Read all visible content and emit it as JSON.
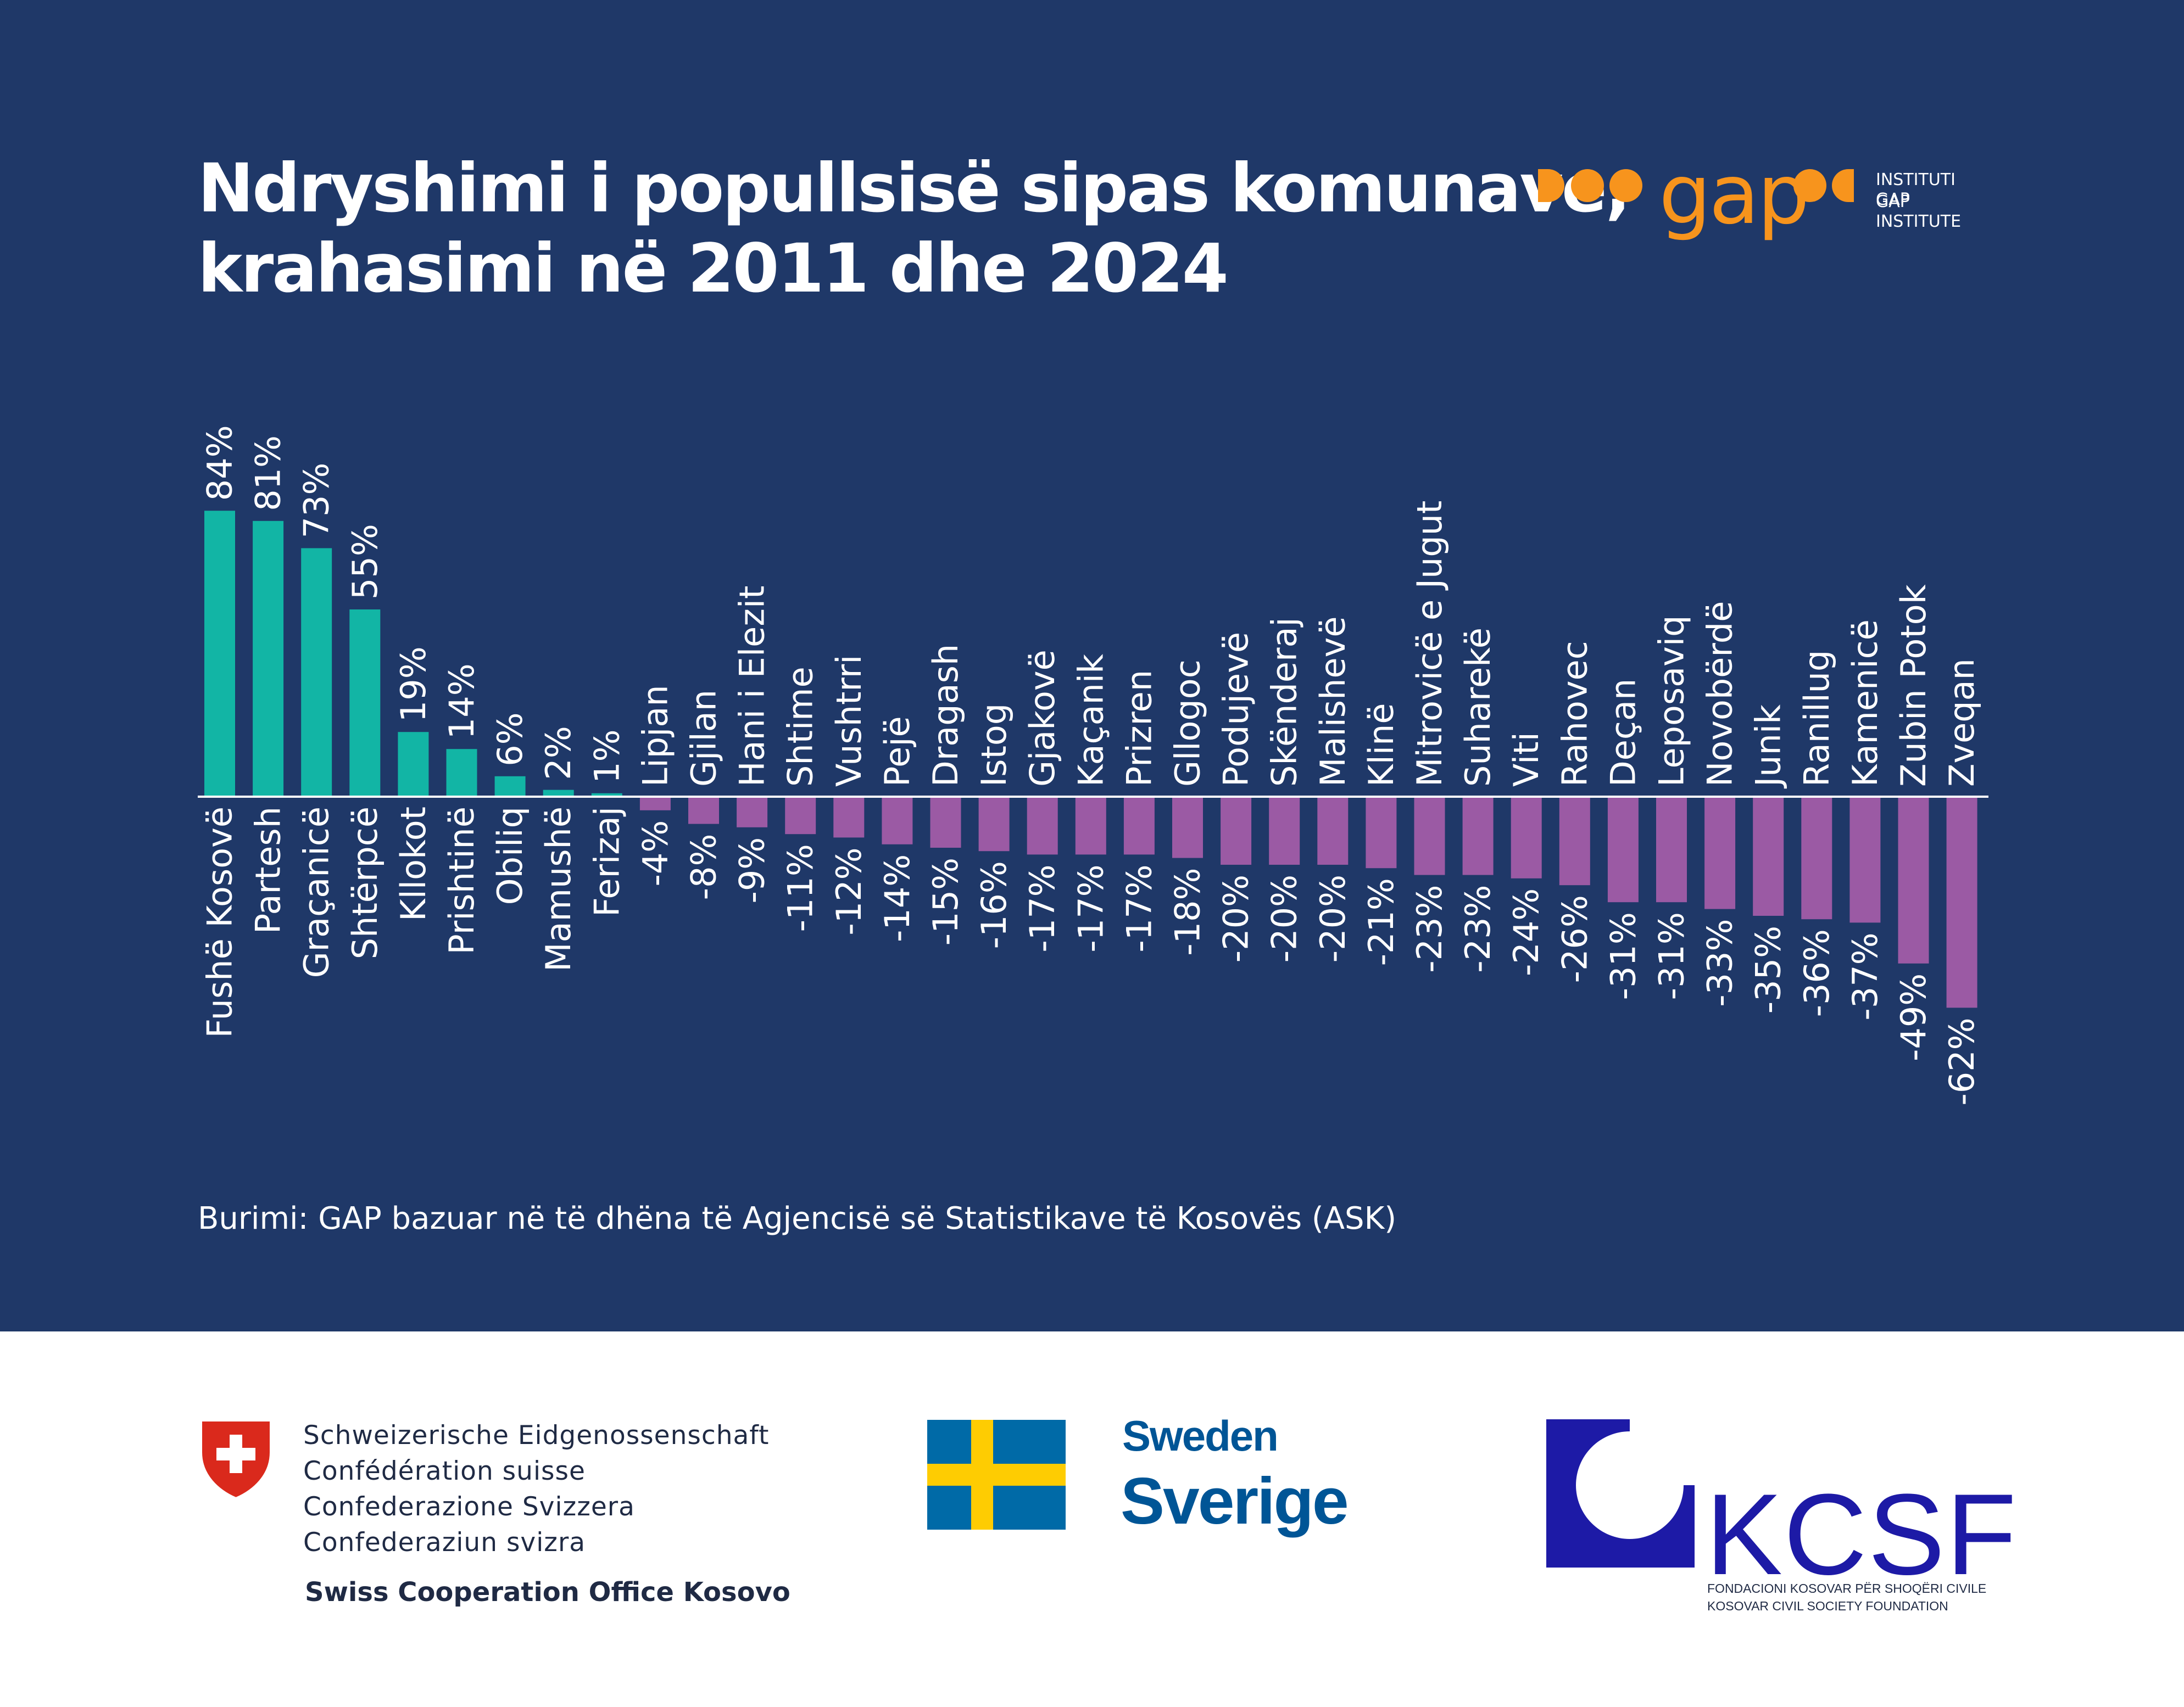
{
  "header": {
    "title_line1": "Ndryshimi i popullsisë sipas komunave,",
    "title_line2": "krahasimi në 2011 dhe 2024",
    "brand_word": "gap",
    "brand_tag_line1": "INSTITUTI GAP",
    "brand_tag_line2": "GAP INSTITUTE",
    "brand_color": "#f7941d"
  },
  "colors": {
    "background": "#1f3868",
    "positive": "#12b5a5",
    "negative": "#9b5aa4",
    "text": "#ffffff"
  },
  "chart_data": {
    "type": "bar",
    "unit": "%",
    "categories": [
      "Fushë Kosovë",
      "Partesh",
      "Graçanicë",
      "Shtërpcë",
      "Kllokot",
      "Prishtinë",
      "Obiliq",
      "Mamushë",
      "Ferizaj",
      "Lipjan",
      "Gjilan",
      "Hani i Elezit",
      "Shtime",
      "Vushtrri",
      "Pejë",
      "Dragash",
      "Istog",
      "Gjakovë",
      "Kaçanik",
      "Prizren",
      "Gllogoc",
      "Podujevë",
      "Skënderaj",
      "Malishevë",
      "Klinë",
      "Mitrovicë e Jugut",
      "Suharekë",
      "Viti",
      "Rahovec",
      "Deçan",
      "Leposaviq",
      "Novobërdë",
      "Junik",
      "Ranillug",
      "Kamenicë",
      "Zubin Potok",
      "Zveqan"
    ],
    "values": [
      84,
      81,
      73,
      55,
      19,
      14,
      6,
      2,
      1,
      -4,
      -8,
      -9,
      -11,
      -12,
      -14,
      -15,
      -16,
      -17,
      -17,
      -17,
      -18,
      -20,
      -20,
      -20,
      -21,
      -23,
      -23,
      -24,
      -26,
      -31,
      -31,
      -33,
      -35,
      -36,
      -37,
      -49,
      -62
    ],
    "value_labels": [
      "84%",
      "81%",
      "73%",
      "55%",
      "19%",
      "14%",
      "6%",
      "2%",
      "1%",
      "-4%",
      "-8%",
      "-9%",
      "-11%",
      "-12%",
      "-14%",
      "-15%",
      "-16%",
      "-17%",
      "-17%",
      "-17%",
      "-18%",
      "-20%",
      "-20%",
      "-20%",
      "-21%",
      "-23%",
      "-23%",
      "-24%",
      "-26%",
      "-31%",
      "-31%",
      "-33%",
      "-35%",
      "-36%",
      "-37%",
      "-49%",
      "-62%"
    ],
    "ylim": [
      -62,
      84
    ],
    "grid": false,
    "legend": "none"
  },
  "source": "Burimi: GAP bazuar në të dhëna të Agjencisë së Statistikave të Kosovës (ASK)",
  "sponsors": {
    "swiss_lines": [
      "Schweizerische Eidgenossenschaft",
      "Confédération suisse",
      "Confederazione Svizzera",
      "Confederaziun svizra"
    ],
    "swiss_office": "Swiss Cooperation Office Kosovo",
    "sweden_small": "Sweden",
    "sweden_big": "Sverige",
    "kcsf_name": "KCSF",
    "kcsf_sub1": "FONDACIONI KOSOVAR PËR SHOQËRI CIVILE",
    "kcsf_sub2": "KOSOVAR CIVIL SOCIETY FOUNDATION",
    "sweden_blue": "#006aa7",
    "sweden_yellow": "#fecc02",
    "kcsf_blue": "#1d1aa6",
    "swiss_red": "#da291c"
  }
}
